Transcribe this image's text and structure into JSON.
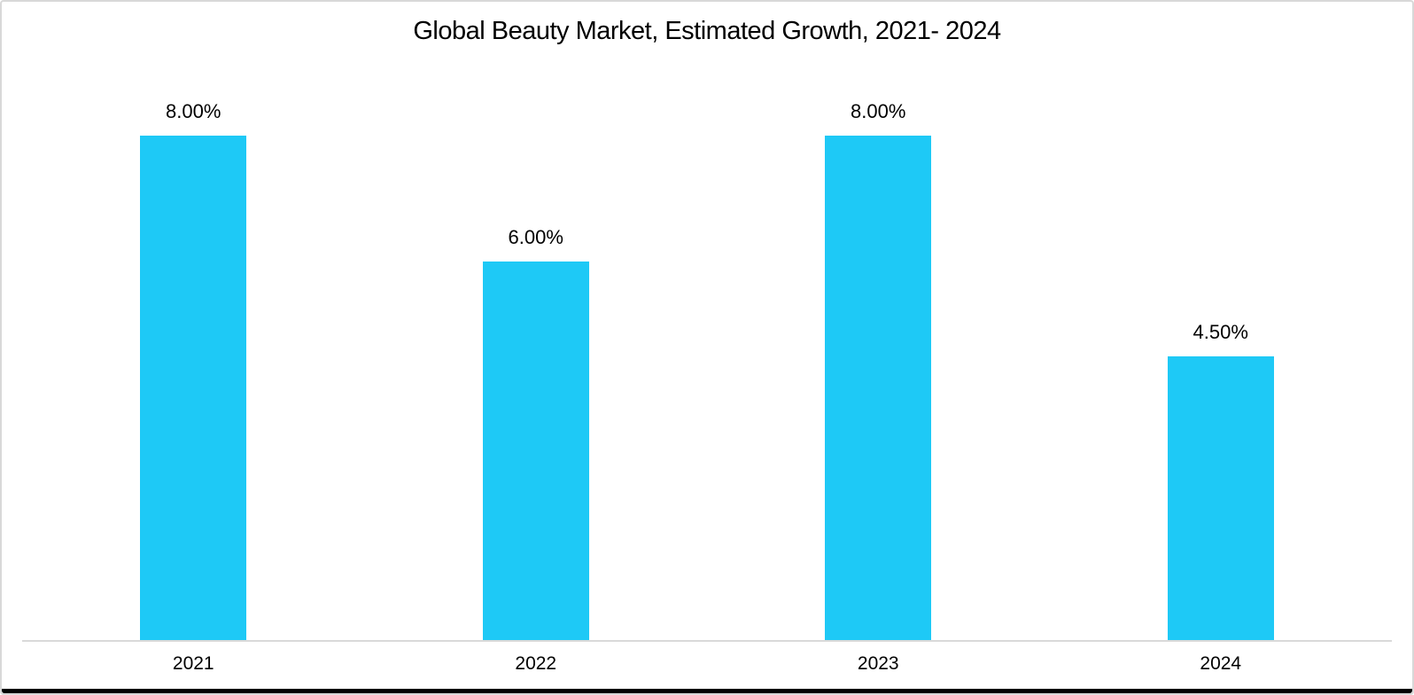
{
  "chart_data": {
    "type": "bar",
    "title": "Global Beauty Market, Estimated Growth, 2021- 2024",
    "categories": [
      "2021",
      "2022",
      "2023",
      "2024"
    ],
    "values": [
      8.0,
      6.0,
      8.0,
      4.5
    ],
    "value_labels": [
      "8.00%",
      "6.00%",
      "8.00%",
      "4.50%"
    ],
    "xlabel": "",
    "ylabel": "",
    "ylim": [
      0,
      8.5
    ],
    "grid": false,
    "legend": false,
    "y_axis_visible": false,
    "bar_color": "#1ec9f6",
    "axis_line_color": "#d9d9d9",
    "text_color": "#000000",
    "background_color": "#ffffff"
  }
}
